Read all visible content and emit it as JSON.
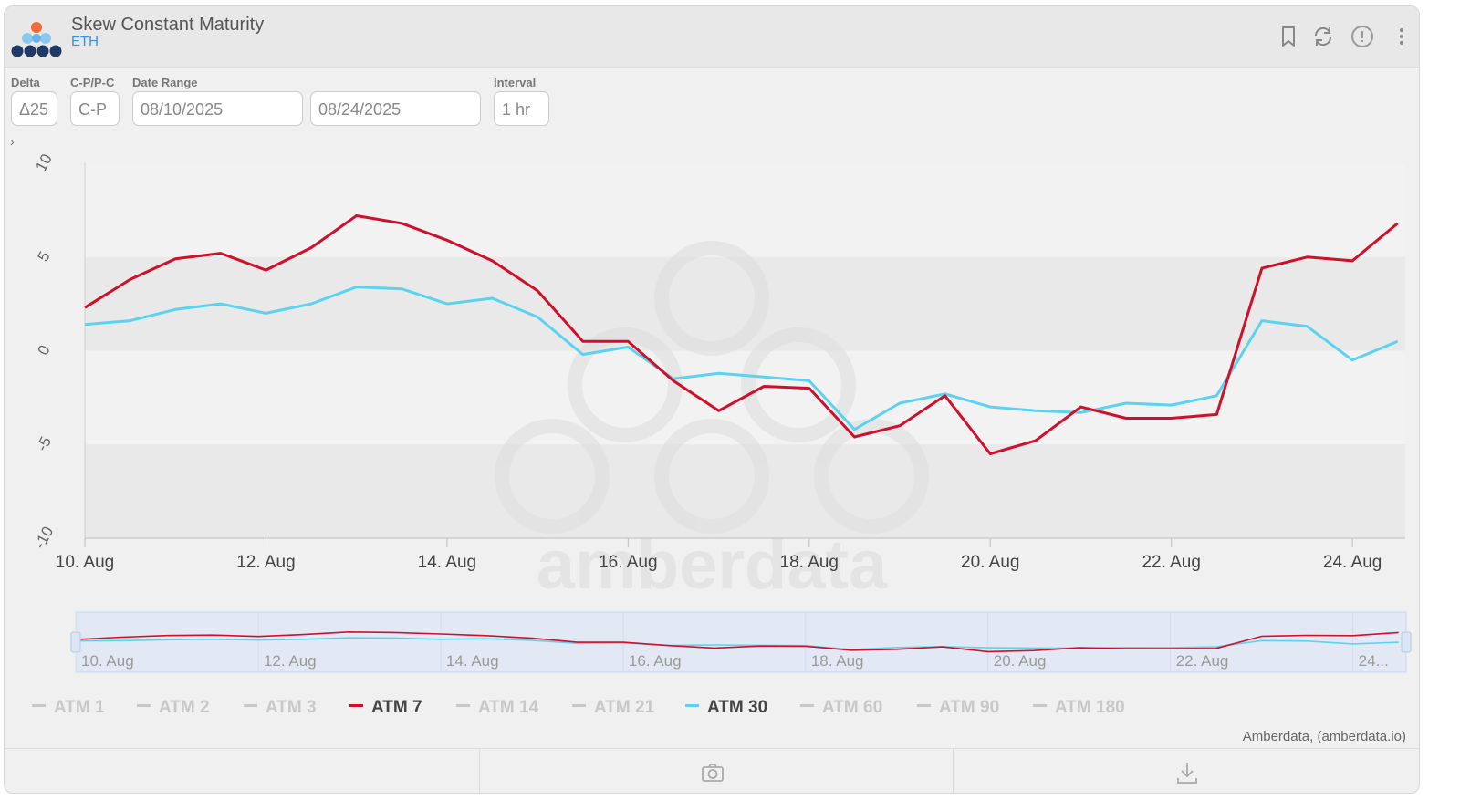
{
  "header": {
    "title": "Skew Constant Maturity",
    "subtitle": "ETH",
    "icons": [
      "bookmark-icon",
      "refresh-icon",
      "alert-icon",
      "more-icon"
    ]
  },
  "controls": {
    "delta": {
      "label": "Delta",
      "value": "Δ25"
    },
    "cp": {
      "label": "C-P/P-C",
      "value": "C-P"
    },
    "date_range": {
      "label": "Date Range",
      "start": "08/10/2025",
      "end": "08/24/2025"
    },
    "interval": {
      "label": "Interval",
      "value": "1 hr"
    }
  },
  "watermark": "amberdata",
  "credit": "Amberdata, (amberdata.io)",
  "colors": {
    "atm7": "#d0102a",
    "atm30": "#5bd3f0",
    "inactive": "#c8c8c8"
  },
  "legend": [
    {
      "label": "ATM 1",
      "active": false
    },
    {
      "label": "ATM 2",
      "active": false
    },
    {
      "label": "ATM 3",
      "active": false
    },
    {
      "label": "ATM 7",
      "active": true,
      "color": "#d0102a"
    },
    {
      "label": "ATM 14",
      "active": false
    },
    {
      "label": "ATM 21",
      "active": false
    },
    {
      "label": "ATM 30",
      "active": true,
      "color": "#5bd3f0"
    },
    {
      "label": "ATM 60",
      "active": false
    },
    {
      "label": "ATM 90",
      "active": false
    },
    {
      "label": "ATM 180",
      "active": false
    }
  ],
  "chart_data": {
    "type": "line",
    "x_ticks": [
      "10. Aug",
      "12. Aug",
      "14. Aug",
      "16. Aug",
      "18. Aug",
      "20. Aug",
      "22. Aug",
      "24. Aug"
    ],
    "y_ticks": [
      "10",
      "5",
      "0",
      "-5",
      "-10"
    ],
    "navigator_ticks": [
      "10. Aug",
      "12. Aug",
      "14. Aug",
      "16. Aug",
      "18. Aug",
      "20. Aug",
      "22. Aug",
      "24..."
    ],
    "x_range": [
      "2025-08-10",
      "2025-08-24 14:00"
    ],
    "ylim": [
      -10,
      10
    ],
    "x": [
      "2025-08-10",
      "2025-08-10 12:00",
      "2025-08-11",
      "2025-08-11 12:00",
      "2025-08-12",
      "2025-08-12 12:00",
      "2025-08-13",
      "2025-08-13 12:00",
      "2025-08-14",
      "2025-08-14 12:00",
      "2025-08-15",
      "2025-08-15 12:00",
      "2025-08-16",
      "2025-08-16 12:00",
      "2025-08-17",
      "2025-08-17 12:00",
      "2025-08-18",
      "2025-08-18 12:00",
      "2025-08-19",
      "2025-08-19 12:00",
      "2025-08-20",
      "2025-08-20 12:00",
      "2025-08-21",
      "2025-08-21 12:00",
      "2025-08-22",
      "2025-08-22 12:00",
      "2025-08-23",
      "2025-08-23 12:00",
      "2025-08-24",
      "2025-08-24 12:00"
    ],
    "series": [
      {
        "name": "ATM 7",
        "values": [
          2.3,
          3.8,
          4.9,
          5.2,
          4.3,
          5.5,
          7.2,
          6.8,
          5.9,
          4.8,
          3.2,
          0.5,
          0.5,
          -1.6,
          -3.2,
          -1.9,
          -2.0,
          -4.6,
          -4.0,
          -2.4,
          -5.5,
          -4.8,
          -3.0,
          -3.6,
          -3.6,
          -3.4,
          4.4,
          5.0,
          4.8,
          6.8
        ]
      },
      {
        "name": "ATM 30",
        "values": [
          1.4,
          1.6,
          2.2,
          2.5,
          2.0,
          2.5,
          3.4,
          3.3,
          2.5,
          2.8,
          1.8,
          -0.2,
          0.2,
          -1.5,
          -1.2,
          -1.4,
          -1.6,
          -4.2,
          -2.8,
          -2.3,
          -3.0,
          -3.2,
          -3.3,
          -2.8,
          -2.9,
          -2.4,
          1.6,
          1.3,
          -0.5,
          0.5
        ]
      }
    ]
  }
}
